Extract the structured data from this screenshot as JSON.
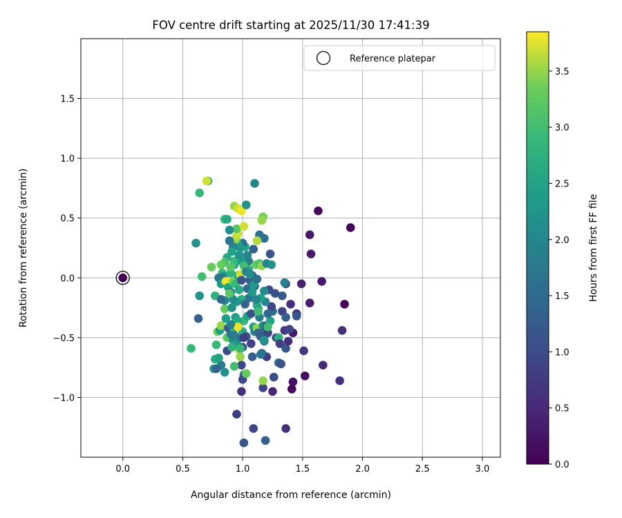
{
  "chart_data": {
    "type": "scatter",
    "title": "FOV centre drift starting at 2025/11/30 17:41:39",
    "xlabel": "Angular distance from reference (arcmin)",
    "ylabel": "Rotation from reference (arcmin)",
    "xlim": [
      -0.35,
      3.15
    ],
    "ylim": [
      -1.5,
      2.0
    ],
    "xticks": [
      0.0,
      0.5,
      1.0,
      1.5,
      2.0,
      2.5,
      3.0
    ],
    "xtick_labels": [
      "0.0",
      "0.5",
      "1.0",
      "1.5",
      "2.0",
      "2.5",
      "3.0"
    ],
    "yticks": [
      -1.0,
      -0.5,
      0.0,
      0.5,
      1.0,
      1.5
    ],
    "ytick_labels": [
      "−1.0",
      "−0.5",
      "0.0",
      "0.5",
      "1.0",
      "1.5"
    ],
    "grid": true,
    "legend": {
      "position": "top-right",
      "entries": [
        "Reference platepar"
      ]
    },
    "reference_point": {
      "x": 0.0,
      "y": 0.0,
      "hours": 0.0
    },
    "colorbar": {
      "label": "Hours from first FF file",
      "range": [
        0.0,
        3.85
      ],
      "ticks": [
        0.0,
        0.5,
        1.0,
        1.5,
        2.0,
        2.5,
        3.0,
        3.5
      ],
      "tick_labels": [
        "0.0",
        "0.5",
        "1.0",
        "1.5",
        "2.0",
        "2.5",
        "3.0",
        "3.5"
      ],
      "colormap": "viridis"
    },
    "points": [
      [
        1.63,
        0.56,
        0.1
      ],
      [
        1.9,
        0.42,
        0.05
      ],
      [
        1.56,
        0.36,
        0.3
      ],
      [
        1.57,
        0.2,
        0.3
      ],
      [
        1.66,
        -0.03,
        0.3
      ],
      [
        1.49,
        -0.05,
        0.4
      ],
      [
        1.56,
        -0.21,
        0.35
      ],
      [
        1.85,
        -0.22,
        0.05
      ],
      [
        1.45,
        -0.3,
        0.6
      ],
      [
        1.42,
        -0.46,
        0.3
      ],
      [
        1.83,
        -0.44,
        0.6
      ],
      [
        1.51,
        -0.61,
        0.7
      ],
      [
        1.52,
        -0.82,
        0.15
      ],
      [
        1.42,
        -0.87,
        0.2
      ],
      [
        1.41,
        -0.93,
        0.1
      ],
      [
        1.67,
        -0.73,
        0.5
      ],
      [
        1.81,
        -0.86,
        0.6
      ],
      [
        1.36,
        -1.26,
        0.6
      ],
      [
        1.01,
        -1.38,
        1.2
      ],
      [
        1.19,
        -1.36,
        1.3
      ],
      [
        1.09,
        -1.26,
        0.9
      ],
      [
        0.95,
        -1.14,
        0.8
      ],
      [
        0.99,
        -0.95,
        0.6
      ],
      [
        1.17,
        -0.92,
        0.9
      ],
      [
        1.25,
        -0.95,
        0.5
      ],
      [
        1.26,
        -0.83,
        1.0
      ],
      [
        1.36,
        -0.59,
        1.2
      ],
      [
        1.38,
        -0.53,
        0.6
      ],
      [
        1.3,
        -0.71,
        1.5
      ],
      [
        1.32,
        -0.72,
        1.1
      ],
      [
        1.2,
        -0.66,
        0.8
      ],
      [
        1.16,
        -0.63,
        1.5
      ],
      [
        1.08,
        -0.66,
        1.3
      ],
      [
        1.01,
        -0.81,
        1.6
      ],
      [
        1.0,
        -0.85,
        1.0
      ],
      [
        0.99,
        -0.73,
        0.9
      ],
      [
        0.82,
        -0.73,
        1.8
      ],
      [
        0.76,
        -0.76,
        2.3
      ],
      [
        0.78,
        -0.76,
        1.4
      ],
      [
        0.85,
        -0.79,
        2.2
      ],
      [
        0.77,
        -0.68,
        2.7
      ],
      [
        0.8,
        -0.67,
        2.5
      ],
      [
        0.87,
        -0.61,
        1.0
      ],
      [
        0.98,
        -0.66,
        3.5
      ],
      [
        0.93,
        -0.74,
        3.0
      ],
      [
        1.03,
        -0.8,
        3.3
      ],
      [
        0.57,
        -0.59,
        2.9
      ],
      [
        0.63,
        -0.34,
        1.3
      ],
      [
        0.64,
        -0.15,
        2.2
      ],
      [
        0.66,
        0.01,
        3.0
      ],
      [
        0.61,
        0.29,
        2.2
      ],
      [
        0.64,
        0.71,
        2.9
      ],
      [
        0.71,
        0.81,
        2.4
      ],
      [
        0.7,
        0.81,
        3.7
      ],
      [
        0.74,
        0.09,
        3.3
      ],
      [
        0.77,
        -0.15,
        2.8
      ],
      [
        0.78,
        -0.56,
        2.9
      ],
      [
        0.79,
        -0.45,
        3.4
      ],
      [
        0.81,
        -0.44,
        2.4
      ],
      [
        0.82,
        -0.4,
        3.5
      ],
      [
        0.87,
        -0.5,
        3.2
      ],
      [
        0.85,
        -0.26,
        3.3
      ],
      [
        0.88,
        -0.42,
        1.2
      ],
      [
        0.9,
        -0.47,
        1.7
      ],
      [
        0.92,
        -0.52,
        2.1
      ],
      [
        0.95,
        -0.55,
        2.3
      ],
      [
        0.97,
        -0.6,
        3.6
      ],
      [
        0.98,
        -0.5,
        1.6
      ],
      [
        1.0,
        -0.45,
        2.6
      ],
      [
        1.01,
        -0.36,
        2.9
      ],
      [
        1.04,
        -0.32,
        2.5
      ],
      [
        1.05,
        -0.17,
        1.7
      ],
      [
        1.07,
        -0.3,
        1.1
      ],
      [
        1.09,
        -0.41,
        2.4
      ],
      [
        1.1,
        -0.45,
        2.0
      ],
      [
        1.12,
        -0.42,
        3.5
      ],
      [
        1.13,
        -0.46,
        1.5
      ],
      [
        1.14,
        -0.33,
        1.8
      ],
      [
        1.15,
        -0.49,
        1.3
      ],
      [
        1.17,
        -0.4,
        2.2
      ],
      [
        1.18,
        -0.53,
        1.7
      ],
      [
        1.19,
        -0.44,
        1.4
      ],
      [
        1.2,
        -0.4,
        1.1
      ],
      [
        1.21,
        -0.46,
        0.9
      ],
      [
        1.23,
        -0.36,
        2.5
      ],
      [
        1.25,
        -0.28,
        1.6
      ],
      [
        1.28,
        -0.5,
        0.9
      ],
      [
        1.3,
        -0.5,
        2.7
      ],
      [
        1.31,
        -0.55,
        0.8
      ],
      [
        1.33,
        -0.28,
        0.9
      ],
      [
        1.35,
        -0.44,
        0.7
      ],
      [
        1.39,
        -0.43,
        0.9
      ],
      [
        1.36,
        -0.33,
        1.3
      ],
      [
        1.33,
        -0.15,
        1.2
      ],
      [
        1.36,
        -0.05,
        0.9
      ],
      [
        1.35,
        -0.04,
        1.9
      ],
      [
        1.4,
        -0.22,
        0.6
      ],
      [
        1.45,
        -0.32,
        1.2
      ],
      [
        1.22,
        -0.1,
        1.0
      ],
      [
        1.27,
        -0.13,
        1.1
      ],
      [
        1.24,
        -0.24,
        0.9
      ],
      [
        1.21,
        -0.3,
        1.5
      ],
      [
        1.19,
        -0.2,
        1.9
      ],
      [
        1.18,
        -0.11,
        2.1
      ],
      [
        1.15,
        -0.17,
        2.4
      ],
      [
        1.12,
        -0.23,
        2.7
      ],
      [
        1.13,
        -0.26,
        2.5
      ],
      [
        1.1,
        -0.07,
        1.3
      ],
      [
        1.08,
        0.02,
        1.4
      ],
      [
        1.05,
        0.14,
        1.8
      ],
      [
        1.11,
        0.11,
        3.3
      ],
      [
        1.14,
        0.12,
        3.1
      ],
      [
        1.16,
        0.1,
        3.5
      ],
      [
        1.2,
        0.12,
        1.9
      ],
      [
        1.24,
        0.11,
        2.2
      ],
      [
        1.23,
        0.2,
        1.1
      ],
      [
        1.18,
        0.33,
        1.6
      ],
      [
        1.14,
        0.36,
        1.6
      ],
      [
        1.12,
        0.31,
        3.6
      ],
      [
        1.09,
        0.24,
        1.3
      ],
      [
        1.05,
        0.07,
        2.7
      ],
      [
        1.02,
        0.26,
        2.5
      ],
      [
        1.0,
        0.29,
        1.6
      ],
      [
        0.98,
        0.25,
        2.3
      ],
      [
        0.96,
        0.29,
        2.4
      ],
      [
        0.94,
        0.32,
        3.5
      ],
      [
        0.95,
        0.35,
        3.6
      ],
      [
        0.96,
        0.37,
        3.7
      ],
      [
        0.95,
        0.41,
        3.2
      ],
      [
        0.93,
        0.6,
        3.5
      ],
      [
        0.96,
        0.58,
        3.7
      ],
      [
        0.99,
        0.56,
        3.8
      ],
      [
        1.01,
        0.43,
        3.7
      ],
      [
        1.03,
        0.61,
        2.2
      ],
      [
        1.1,
        0.79,
        2.0
      ],
      [
        1.17,
        0.51,
        3.4
      ],
      [
        1.16,
        0.48,
        3.5
      ],
      [
        0.85,
        0.49,
        2.9
      ],
      [
        0.87,
        0.49,
        2.6
      ],
      [
        0.89,
        0.4,
        2.1
      ],
      [
        0.89,
        0.31,
        1.7
      ],
      [
        0.92,
        0.26,
        1.9
      ],
      [
        0.91,
        0.22,
        2.5
      ],
      [
        0.87,
        0.17,
        2.6
      ],
      [
        0.85,
        0.13,
        3.1
      ],
      [
        0.82,
        0.11,
        3.3
      ],
      [
        0.83,
        0.04,
        2.9
      ],
      [
        0.84,
        0.01,
        1.9
      ],
      [
        0.8,
        0.0,
        1.7
      ],
      [
        0.82,
        -0.05,
        2.3
      ],
      [
        0.86,
        -0.03,
        3.8
      ],
      [
        0.88,
        -0.08,
        2.5
      ],
      [
        0.9,
        -0.12,
        1.7
      ],
      [
        0.92,
        -0.03,
        3.4
      ],
      [
        0.94,
        -0.05,
        2.9
      ],
      [
        0.96,
        0.02,
        2.6
      ],
      [
        0.98,
        0.03,
        3.7
      ],
      [
        0.97,
        -0.1,
        2.6
      ],
      [
        0.99,
        -0.18,
        2.7
      ],
      [
        0.95,
        -0.2,
        2.3
      ],
      [
        0.92,
        -0.18,
        2.1
      ],
      [
        0.89,
        -0.13,
        3.2
      ],
      [
        0.85,
        -0.19,
        2.0
      ],
      [
        0.82,
        -0.18,
        1.5
      ],
      [
        0.91,
        -0.25,
        2.2
      ],
      [
        0.94,
        -0.33,
        2.4
      ],
      [
        0.96,
        -0.36,
        2.6
      ],
      [
        0.93,
        -0.42,
        2.7
      ],
      [
        0.96,
        -0.41,
        3.8
      ],
      [
        0.9,
        -0.39,
        1.9
      ],
      [
        0.86,
        -0.34,
        2.4
      ],
      [
        1.02,
        -0.22,
        1.4
      ],
      [
        1.04,
        -0.09,
        1.5
      ],
      [
        1.06,
        -0.02,
        1.3
      ],
      [
        1.08,
        -0.12,
        2.3
      ],
      [
        1.11,
        -0.18,
        1.9
      ],
      [
        1.03,
        -0.49,
        1.2
      ],
      [
        1.07,
        -0.55,
        0.9
      ],
      [
        1.0,
        -0.58,
        1.1
      ],
      [
        0.93,
        0.11,
        2.6
      ],
      [
        0.9,
        0.04,
        2.8
      ],
      [
        0.93,
        0.14,
        2.9
      ],
      [
        0.9,
        0.09,
        3.2
      ],
      [
        0.99,
        0.14,
        2.4
      ],
      [
        1.04,
        0.19,
        2.0
      ],
      [
        0.97,
        0.19,
        2.2
      ],
      [
        1.01,
        0.1,
        3.0
      ],
      [
        0.99,
        -0.02,
        1.1
      ],
      [
        1.03,
        0.05,
        1.9
      ],
      [
        1.06,
        0.03,
        2.1
      ],
      [
        1.09,
        -0.06,
        2.3
      ],
      [
        1.12,
        -0.01,
        1.6
      ],
      [
        1.13,
        -0.28,
        3.0
      ],
      [
        1.18,
        -0.52,
        2.2
      ],
      [
        1.21,
        -0.41,
        3.0
      ],
      [
        1.01,
        -0.5,
        0.8
      ],
      [
        0.91,
        -0.58,
        2.8
      ],
      [
        0.93,
        -0.48,
        1.8
      ],
      [
        0.98,
        -0.59,
        2.9
      ],
      [
        1.17,
        -0.86,
        3.5
      ],
      [
        1.15,
        -0.64,
        1.7
      ]
    ]
  }
}
